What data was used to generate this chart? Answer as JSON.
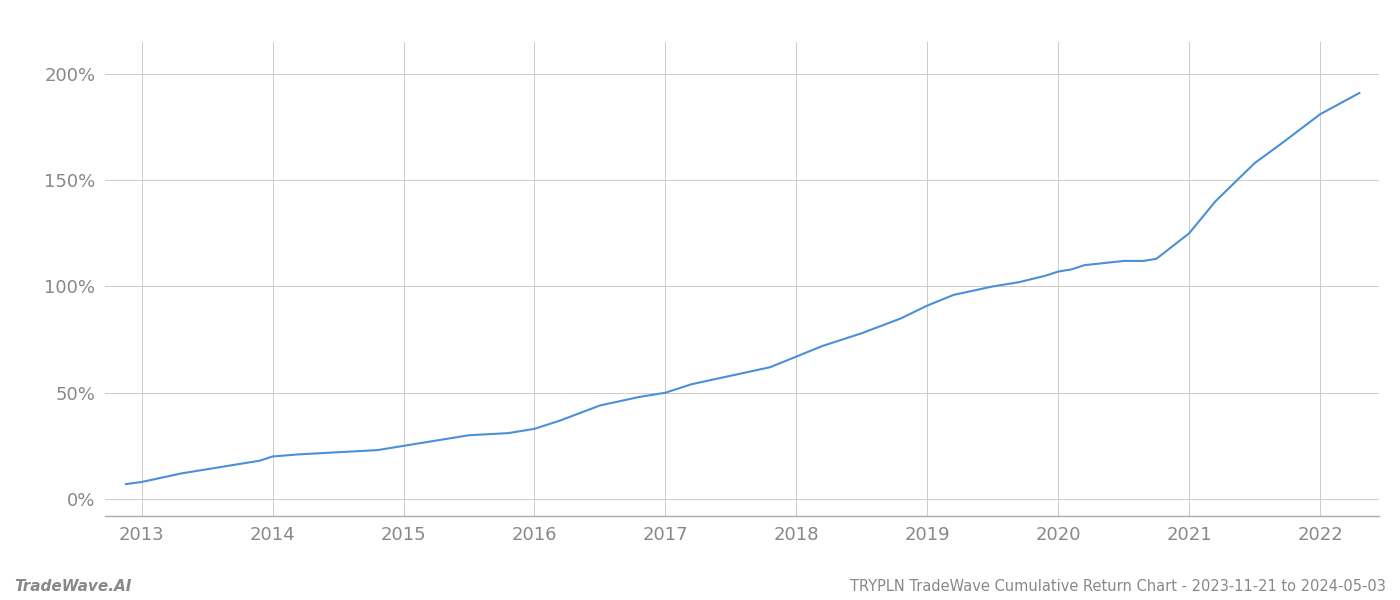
{
  "title": "TRYPLN TradeWave Cumulative Return Chart - 2023-11-21 to 2024-05-03",
  "watermark": "TradeWave.AI",
  "line_color": "#4a90d9",
  "background_color": "#ffffff",
  "grid_color": "#cccccc",
  "x_years": [
    2013,
    2014,
    2015,
    2016,
    2017,
    2018,
    2019,
    2020,
    2021,
    2022
  ],
  "y_ticks": [
    0,
    50,
    100,
    150,
    200
  ],
  "xlim": [
    2012.72,
    2022.45
  ],
  "ylim": [
    -8,
    215
  ],
  "data_x": [
    2012.88,
    2013.0,
    2013.15,
    2013.3,
    2013.5,
    2013.7,
    2013.9,
    2014.0,
    2014.2,
    2014.5,
    2014.8,
    2015.0,
    2015.2,
    2015.5,
    2015.8,
    2016.0,
    2016.2,
    2016.5,
    2016.8,
    2017.0,
    2017.2,
    2017.5,
    2017.8,
    2018.0,
    2018.2,
    2018.5,
    2018.8,
    2019.0,
    2019.2,
    2019.5,
    2019.7,
    2019.9,
    2020.0,
    2020.1,
    2020.2,
    2020.35,
    2020.5,
    2020.65,
    2020.75,
    2021.0,
    2021.2,
    2021.5,
    2021.7,
    2022.0,
    2022.3
  ],
  "data_y": [
    7,
    8,
    10,
    12,
    14,
    16,
    18,
    20,
    21,
    22,
    23,
    25,
    27,
    30,
    31,
    33,
    37,
    44,
    48,
    50,
    54,
    58,
    62,
    67,
    72,
    78,
    85,
    91,
    96,
    100,
    102,
    105,
    107,
    108,
    110,
    111,
    112,
    112,
    113,
    125,
    140,
    158,
    167,
    181,
    191
  ]
}
